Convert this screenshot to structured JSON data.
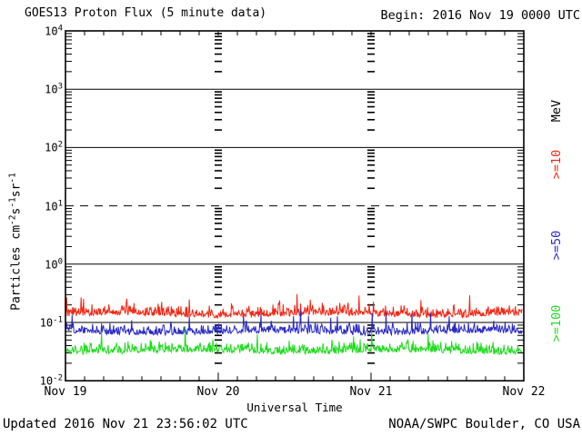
{
  "header": {
    "title": "GOES13 Proton Flux (5 minute data)",
    "begin": "Begin: 2016 Nov 19 0000 UTC"
  },
  "footer": {
    "updated": "Updated 2016 Nov 21 23:56:02 UTC",
    "source": "NOAA/SWPC Boulder, CO USA"
  },
  "axes": {
    "x_label": "Universal Time",
    "x_ticks": [
      "Nov 19",
      "Nov 20",
      "Nov 21",
      "Nov 22"
    ],
    "y_tick_base": "10",
    "y_exponents": [
      4,
      3,
      2,
      1,
      0,
      -1,
      -2
    ],
    "y_label_parts": [
      {
        "text": "Particles cm",
        "sup": false
      },
      {
        "text": "-2",
        "sup": true
      },
      {
        "text": "s",
        "sup": false
      },
      {
        "text": "-1",
        "sup": true
      },
      {
        "text": "sr",
        "sup": false
      },
      {
        "text": "-1",
        "sup": true
      }
    ]
  },
  "legend": {
    "unit_label": "MeV",
    "unit_color": "#000000",
    "entries": [
      {
        "label": ">=10",
        "color": "#f52512"
      },
      {
        "label": ">=50",
        "color": "#2828c8"
      },
      {
        "label": ">=100",
        "color": "#1edc1e"
      }
    ]
  },
  "chart_data": {
    "type": "line",
    "title": "GOES13 Proton Flux (5 minute data)",
    "xlabel": "Universal Time",
    "ylabel": "Particles cm^-2 s^-1 sr^-1",
    "y_scale": "log10",
    "ylim": [
      0.01,
      10000
    ],
    "x_range_utc": [
      "2016 Nov 19 0000 UTC",
      "2016 Nov 22 0000 UTC"
    ],
    "x_tick_labels": [
      "Nov 19",
      "Nov 20",
      "Nov 21",
      "Nov 22"
    ],
    "cadence": "5 minute",
    "grid": {
      "solid_line_decades": [
        3,
        2,
        0,
        -1
      ],
      "dashed_line_decades": [
        1
      ],
      "vertical_dashed_day_boundaries": [
        "Nov 20",
        "Nov 21"
      ],
      "minor_log_ticks": true
    },
    "legend_position": "right-outside",
    "series": [
      {
        "name": "Protons >=10 MeV",
        "color": "#f52512",
        "approx_geometric_mean_flux": 0.18,
        "approx_flux_range": [
          0.11,
          0.5
        ],
        "gen": {
          "seed": 1101,
          "base_log10": -0.9,
          "noise_log10": 0.15,
          "spike_prob": 0.06,
          "spike_log10": 0.25,
          "wobble": 0.02
        }
      },
      {
        "name": "Protons >=50 MeV",
        "color": "#2828c8",
        "approx_geometric_mean_flux": 0.085,
        "approx_flux_range": [
          0.055,
          0.3
        ],
        "gen": {
          "seed": 2202,
          "base_log10": -1.2,
          "noise_log10": 0.14,
          "spike_prob": 0.05,
          "spike_log10": 0.3,
          "wobble": 0.02
        }
      },
      {
        "name": "Protons >=100 MeV",
        "color": "#1edc1e",
        "approx_geometric_mean_flux": 0.042,
        "approx_flux_range": [
          0.027,
          0.11
        ],
        "gen": {
          "seed": 3303,
          "base_log10": -1.53,
          "noise_log10": 0.15,
          "spike_prob": 0.05,
          "spike_log10": 0.28,
          "wobble": 0.02
        }
      }
    ],
    "points_per_series": 760
  }
}
